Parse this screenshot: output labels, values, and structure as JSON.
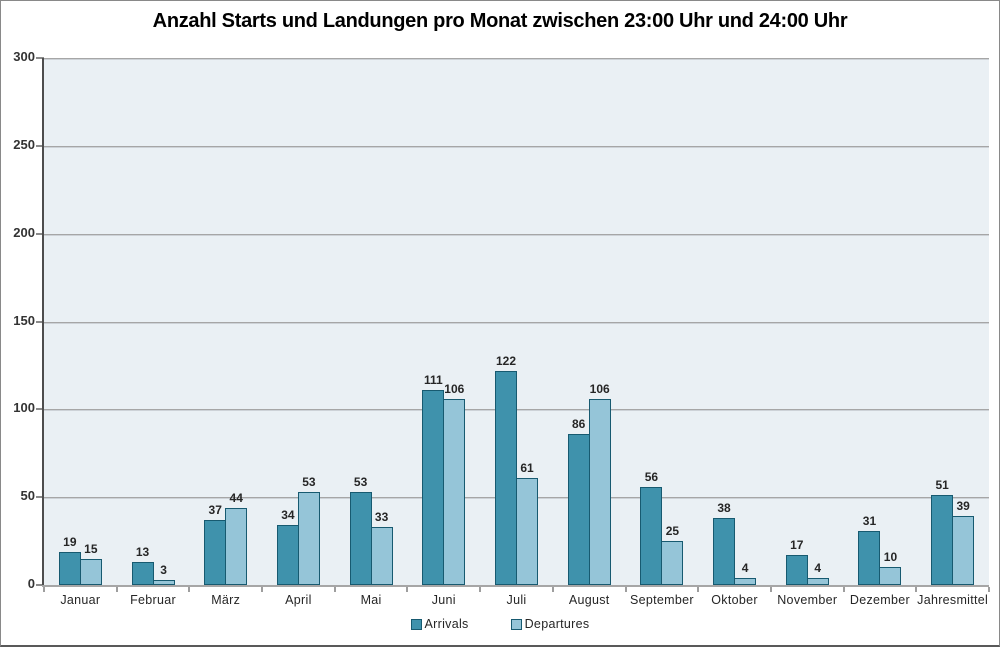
{
  "window": {
    "background": "#FFFFFF",
    "frame_border_color": "#898989",
    "frame_bottom_border_color": "#595959"
  },
  "chart_data": {
    "type": "bar",
    "title": "Anzahl Starts und Landungen pro Monat zwischen 23:00 Uhr und 24:00 Uhr",
    "categories": [
      "Januar",
      "Februar",
      "März",
      "April",
      "Mai",
      "Juni",
      "Juli",
      "August",
      "September",
      "Oktober",
      "November",
      "Dezember",
      "Jahresmittel"
    ],
    "series": [
      {
        "name": "Arrivals",
        "values": [
          19,
          13,
          37,
          34,
          53,
          111,
          122,
          86,
          56,
          38,
          17,
          31,
          51
        ],
        "fill": "#3F92AC",
        "border": "#175A70"
      },
      {
        "name": "Departures",
        "values": [
          15,
          3,
          44,
          53,
          33,
          106,
          61,
          106,
          25,
          4,
          4,
          10,
          39
        ],
        "fill": "#95C5D8",
        "border": "#175A70"
      }
    ],
    "xlabel": "",
    "ylabel": "",
    "ylim": [
      0,
      300
    ],
    "yticks": [
      0,
      50,
      100,
      150,
      200,
      250,
      300
    ],
    "grid": true,
    "data_labels": true,
    "legend_position": "bottom",
    "plot_background": "#EAF0F4",
    "grid_color": "#A6A6A6",
    "axis_text_color": "#333333",
    "label_text_color": "#262626",
    "title_color": "#000000"
  }
}
